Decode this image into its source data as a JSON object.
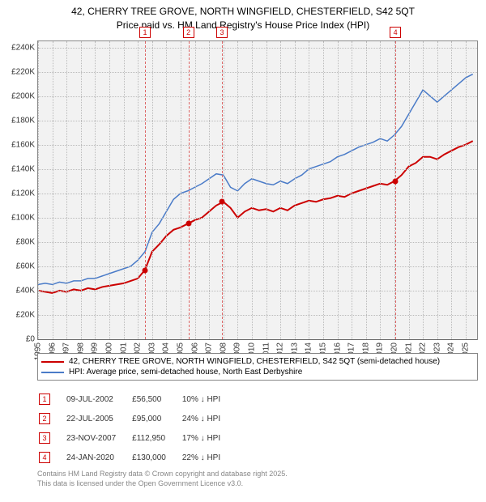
{
  "title_line1": "42, CHERRY TREE GROVE, NORTH WINGFIELD, CHESTERFIELD, S42 5QT",
  "title_line2": "Price paid vs. HM Land Registry's House Price Index (HPI)",
  "chart": {
    "type": "line",
    "background_color": "#f2f2f2",
    "grid_color": "#bbbbbb",
    "border_color": "#888888",
    "x_years": [
      1995,
      1996,
      1997,
      1998,
      1999,
      2000,
      2001,
      2002,
      2003,
      2004,
      2005,
      2006,
      2007,
      2008,
      2009,
      2010,
      2011,
      2012,
      2013,
      2014,
      2015,
      2016,
      2017,
      2018,
      2019,
      2020,
      2021,
      2022,
      2023,
      2024,
      2025
    ],
    "xlim": [
      1995,
      2025.8
    ],
    "ylim": [
      0,
      245000
    ],
    "y_ticks": [
      0,
      20000,
      40000,
      60000,
      80000,
      100000,
      120000,
      140000,
      160000,
      180000,
      200000,
      220000,
      240000
    ],
    "y_tick_labels": [
      "£0",
      "£20K",
      "£40K",
      "£60K",
      "£80K",
      "£100K",
      "£120K",
      "£140K",
      "£160K",
      "£180K",
      "£200K",
      "£220K",
      "£240K"
    ],
    "label_fontsize": 10,
    "series_red": {
      "label": "42, CHERRY TREE GROVE, NORTH WINGFIELD, CHESTERFIELD, S42 5QT (semi-detached house)",
      "color": "#cc0000",
      "width": 2,
      "x": [
        1995,
        1995.5,
        1996,
        1996.5,
        1997,
        1997.5,
        1998,
        1998.5,
        1999,
        1999.5,
        2000,
        2000.5,
        2001,
        2001.5,
        2002,
        2002.5,
        2003,
        2003.5,
        2004,
        2004.5,
        2005,
        2005.5,
        2006,
        2006.5,
        2007,
        2007.5,
        2008,
        2008.5,
        2009,
        2009.5,
        2010,
        2010.5,
        2011,
        2011.5,
        2012,
        2012.5,
        2013,
        2013.5,
        2014,
        2014.5,
        2015,
        2015.5,
        2016,
        2016.5,
        2017,
        2017.5,
        2018,
        2018.5,
        2019,
        2019.5,
        2020,
        2020.5,
        2021,
        2021.5,
        2022,
        2022.5,
        2023,
        2023.5,
        2024,
        2024.5,
        2025,
        2025.5
      ],
      "y": [
        40000,
        39000,
        38000,
        40000,
        39000,
        41000,
        40000,
        42000,
        41000,
        43000,
        44000,
        45000,
        46000,
        48000,
        50000,
        57000,
        72000,
        78000,
        85000,
        90000,
        92000,
        95000,
        98000,
        100000,
        105000,
        110000,
        113000,
        108000,
        100000,
        105000,
        108000,
        106000,
        107000,
        105000,
        108000,
        106000,
        110000,
        112000,
        114000,
        113000,
        115000,
        116000,
        118000,
        117000,
        120000,
        122000,
        124000,
        126000,
        128000,
        127000,
        130000,
        135000,
        142000,
        145000,
        150000,
        150000,
        148000,
        152000,
        155000,
        158000,
        160000,
        163000
      ]
    },
    "series_blue": {
      "label": "HPI: Average price, semi-detached house, North East Derbyshire",
      "color": "#4a7bc8",
      "width": 1.5,
      "x": [
        1995,
        1995.5,
        1996,
        1996.5,
        1997,
        1997.5,
        1998,
        1998.5,
        1999,
        1999.5,
        2000,
        2000.5,
        2001,
        2001.5,
        2002,
        2002.5,
        2003,
        2003.5,
        2004,
        2004.5,
        2005,
        2005.5,
        2006,
        2006.5,
        2007,
        2007.5,
        2008,
        2008.5,
        2009,
        2009.5,
        2010,
        2010.5,
        2011,
        2011.5,
        2012,
        2012.5,
        2013,
        2013.5,
        2014,
        2014.5,
        2015,
        2015.5,
        2016,
        2016.5,
        2017,
        2017.5,
        2018,
        2018.5,
        2019,
        2019.5,
        2020,
        2020.5,
        2021,
        2021.5,
        2022,
        2022.5,
        2023,
        2023.5,
        2024,
        2024.5,
        2025,
        2025.5
      ],
      "y": [
        45000,
        46000,
        45000,
        47000,
        46000,
        48000,
        48000,
        50000,
        50000,
        52000,
        54000,
        56000,
        58000,
        60000,
        65000,
        72000,
        88000,
        95000,
        105000,
        115000,
        120000,
        122000,
        125000,
        128000,
        132000,
        136000,
        135000,
        125000,
        122000,
        128000,
        132000,
        130000,
        128000,
        127000,
        130000,
        128000,
        132000,
        135000,
        140000,
        142000,
        144000,
        146000,
        150000,
        152000,
        155000,
        158000,
        160000,
        162000,
        165000,
        163000,
        168000,
        175000,
        185000,
        195000,
        205000,
        200000,
        195000,
        200000,
        205000,
        210000,
        215000,
        218000
      ]
    },
    "markers": [
      {
        "n": "1",
        "year": 2002.5
      },
      {
        "n": "2",
        "year": 2005.55
      },
      {
        "n": "3",
        "year": 2007.9
      },
      {
        "n": "4",
        "year": 2020.07
      }
    ],
    "sale_dots": [
      {
        "year": 2002.5,
        "price": 56500
      },
      {
        "year": 2005.55,
        "price": 95000
      },
      {
        "year": 2007.9,
        "price": 112950
      },
      {
        "year": 2020.07,
        "price": 130000
      }
    ],
    "dot_color": "#cc0000"
  },
  "sales": [
    {
      "n": "1",
      "date": "09-JUL-2002",
      "price": "£56,500",
      "delta": "10% ↓ HPI"
    },
    {
      "n": "2",
      "date": "22-JUL-2005",
      "price": "£95,000",
      "delta": "24% ↓ HPI"
    },
    {
      "n": "3",
      "date": "23-NOV-2007",
      "price": "£112,950",
      "delta": "17% ↓ HPI"
    },
    {
      "n": "4",
      "date": "24-JAN-2020",
      "price": "£130,000",
      "delta": "22% ↓ HPI"
    }
  ],
  "footer_line1": "Contains HM Land Registry data © Crown copyright and database right 2025.",
  "footer_line2": "This data is licensed under the Open Government Licence v3.0."
}
